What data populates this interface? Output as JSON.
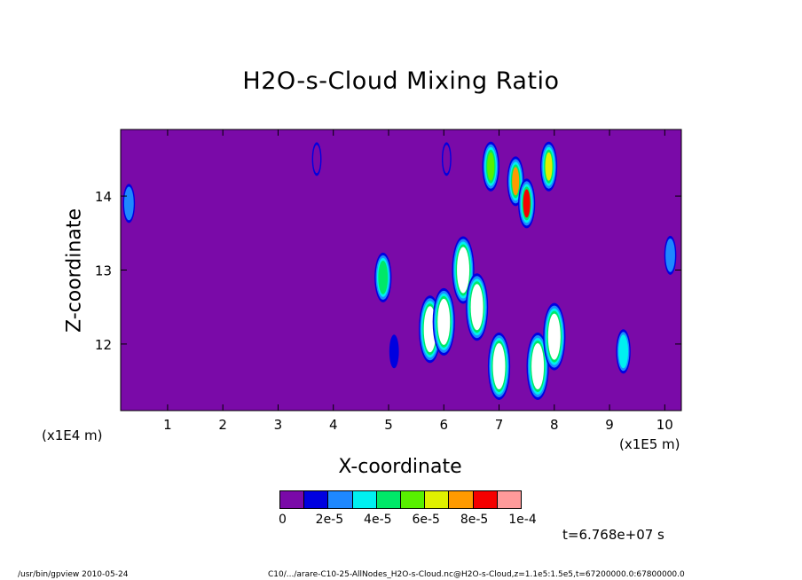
{
  "chart_data": {
    "type": "heatmap",
    "title": "H2O-s-Cloud Mixing Ratio",
    "xlabel": "X-coordinate",
    "ylabel": "Z-coordinate",
    "x_unit": "(x1E5 m)",
    "y_unit": "(x1E4 m)",
    "xlim": [
      0.15,
      10.3
    ],
    "ylim": [
      11.1,
      14.9
    ],
    "x_ticks": [
      "1",
      "2",
      "3",
      "4",
      "5",
      "6",
      "7",
      "8",
      "9",
      "10"
    ],
    "y_ticks": [
      "12",
      "13",
      "14"
    ],
    "colorbar": {
      "labels": [
        "0",
        "2e-5",
        "4e-5",
        "6e-5",
        "8e-5",
        "1e-4"
      ],
      "colors": [
        "#7a0aa8",
        "#0000e0",
        "#1e88ff",
        "#00f0f0",
        "#00e868",
        "#58f000",
        "#e0f000",
        "#ff9a00",
        "#f50000",
        "#ff9a9a"
      ],
      "vmin": 0,
      "vmax": 0.0001
    },
    "background_color": "#7a0aa8",
    "time_label": "t=6.768e+07 s",
    "features": [
      {
        "x": 0.3,
        "z": 13.9,
        "level": 3
      },
      {
        "x": 3.7,
        "z": 14.5,
        "level": 1
      },
      {
        "x": 4.9,
        "z": 12.9,
        "level": 5
      },
      {
        "x": 5.1,
        "z": 11.9,
        "level": 2
      },
      {
        "x": 5.75,
        "z": 12.2,
        "level": 10
      },
      {
        "x": 6.0,
        "z": 12.3,
        "level": 10
      },
      {
        "x": 6.05,
        "z": 14.5,
        "level": 1
      },
      {
        "x": 6.35,
        "z": 13.0,
        "level": 10
      },
      {
        "x": 6.6,
        "z": 12.5,
        "level": 10
      },
      {
        "x": 6.85,
        "z": 14.4,
        "level": 6
      },
      {
        "x": 7.0,
        "z": 11.7,
        "level": 10
      },
      {
        "x": 7.3,
        "z": 14.2,
        "level": 8
      },
      {
        "x": 7.5,
        "z": 13.9,
        "level": 9
      },
      {
        "x": 7.7,
        "z": 11.7,
        "level": 10
      },
      {
        "x": 7.9,
        "z": 14.4,
        "level": 7
      },
      {
        "x": 8.0,
        "z": 12.1,
        "level": 10
      },
      {
        "x": 9.25,
        "z": 11.9,
        "level": 4
      },
      {
        "x": 10.1,
        "z": 13.2,
        "level": 3
      }
    ]
  },
  "footer": {
    "left": "/usr/bin/gpview   2010-05-24",
    "right": "C10/.../arare-C10-25-AllNodes_H2O-s-Cloud.nc@H2O-s-Cloud,z=1.1e5:1.5e5,t=67200000.0:67800000.0"
  }
}
